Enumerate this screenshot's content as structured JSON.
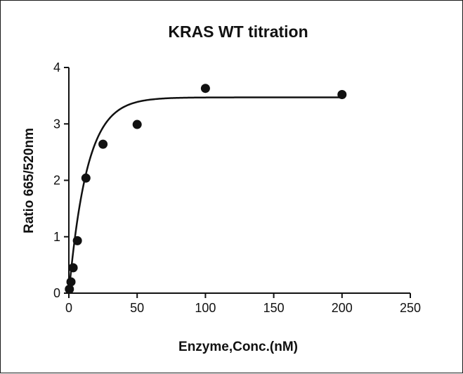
{
  "chart_data": {
    "type": "scatter",
    "title": "KRAS WT titration",
    "xlabel": "Enzyme,Conc.(nM)",
    "ylabel": "Ratio 665/520nm",
    "xlim": [
      0,
      250
    ],
    "ylim": [
      0,
      4
    ],
    "xticks": [
      "0",
      "50",
      "100",
      "150",
      "200",
      "250"
    ],
    "yticks": [
      "0",
      "1",
      "2",
      "3",
      "4"
    ],
    "grid": false,
    "legend": "none",
    "series": [
      {
        "x": [
          0.39,
          1.56,
          3.13,
          6.25,
          12.5,
          25,
          50,
          100,
          200
        ],
        "y": [
          0.07,
          0.2,
          0.45,
          0.93,
          2.04,
          2.64,
          2.99,
          3.63,
          3.52
        ]
      }
    ],
    "fit": {
      "model": "one-phase association",
      "plateau": 3.47,
      "k": 0.075
    },
    "colors": {
      "points": "#111111",
      "curve": "#111111"
    }
  }
}
